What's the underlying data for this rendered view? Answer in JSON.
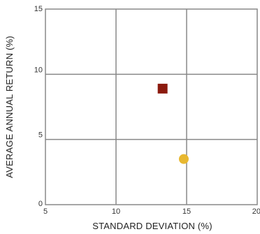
{
  "chart_data": {
    "type": "scatter",
    "title": "",
    "xlabel": "STANDARD DEVIATION (%)",
    "ylabel": "AVERAGE ANNUAL RETURN (%)",
    "xlim": [
      5,
      20
    ],
    "ylim": [
      0,
      15
    ],
    "xticks": [
      "5",
      "10",
      "15",
      "20"
    ],
    "yticks": [
      "0",
      "5",
      "10",
      "15"
    ],
    "grid": true,
    "series": [
      {
        "marker": "square",
        "color": "#8b1a0e",
        "points": [
          {
            "x": 13.3,
            "y": 8.9
          }
        ]
      },
      {
        "marker": "circle",
        "color": "#e8b830",
        "points": [
          {
            "x": 14.8,
            "y": 3.5
          }
        ]
      }
    ]
  }
}
